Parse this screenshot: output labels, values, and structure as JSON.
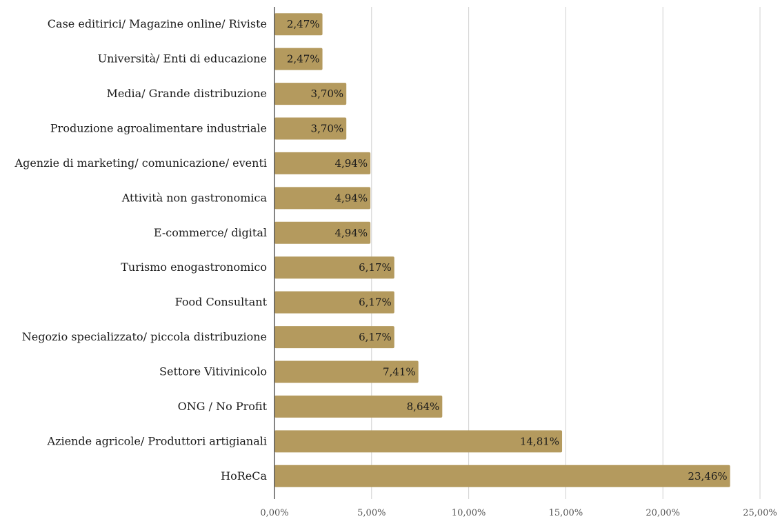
{
  "chart_data": {
    "type": "bar",
    "orientation": "horizontal",
    "categories": [
      "Case editirici/ Magazine online/ Riviste",
      "Università/ Enti di educazione",
      "Media/ Grande distribuzione",
      "Produzione agroalimentare industriale",
      "Agenzie di marketing/ comunicazione/ eventi",
      "Attività non gastronomica",
      "E-commerce/ digital",
      "Turismo enogastronomico",
      "Food Consultant",
      "Negozio specializzato/ piccola distribuzione",
      "Settore Vitivinicolo",
      "ONG / No Profit",
      "Aziende agricole/ Produttori artigianali",
      "HoReCa"
    ],
    "values": [
      2.47,
      2.47,
      3.7,
      3.7,
      4.94,
      4.94,
      4.94,
      6.17,
      6.17,
      6.17,
      7.41,
      8.64,
      14.81,
      23.46
    ],
    "value_labels": [
      "2,47%",
      "2,47%",
      "3,70%",
      "3,70%",
      "4,94%",
      "4,94%",
      "4,94%",
      "6,17%",
      "6,17%",
      "6,17%",
      "7,41%",
      "8,64%",
      "14,81%",
      "23,46%"
    ],
    "xlim": [
      0,
      25
    ],
    "xticks": [
      0,
      5,
      10,
      15,
      20,
      25
    ],
    "xtick_labels": [
      "0,00%",
      "5,00%",
      "10,00%",
      "15,00%",
      "20,00%",
      "25,00%"
    ],
    "title": "",
    "xlabel": "",
    "ylabel": "",
    "grid": "vertical",
    "legend": "none",
    "bar_color": "#b49a5e"
  }
}
